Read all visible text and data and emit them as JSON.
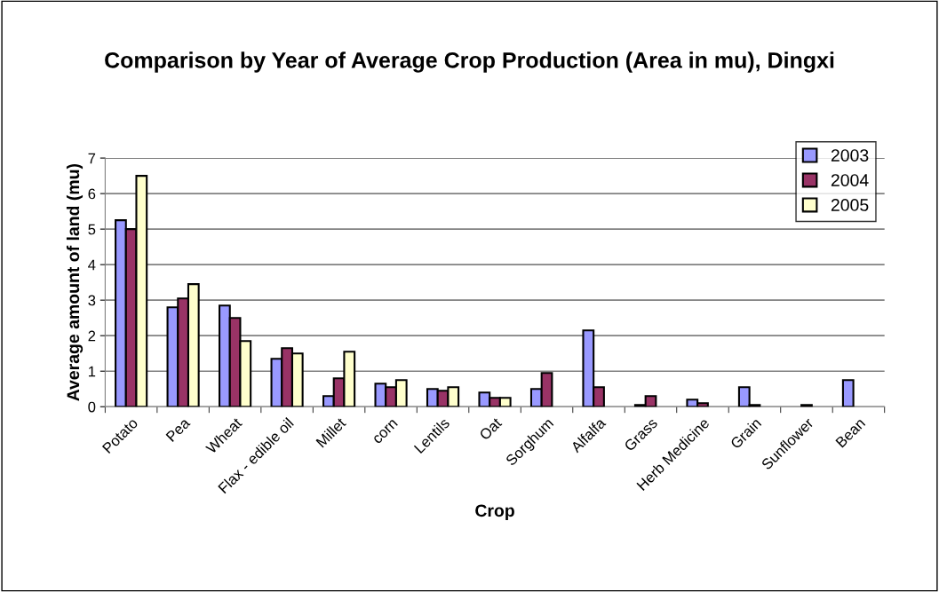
{
  "chart_data": {
    "type": "bar",
    "title": "Comparison by Year of Average Crop Production (Area in mu), Dingxi",
    "xlabel": "Crop",
    "ylabel": "Average amount of land (mu)",
    "categories": [
      "Potato",
      "Pea",
      "Wheat",
      "Flax - edible oil",
      "Millet",
      "corn",
      "Lentils",
      "Oat",
      "Sorghum",
      "Alfalfa",
      "Grass",
      "Herb Medicine",
      "Grain",
      "Sunflower",
      "Bean"
    ],
    "series": [
      {
        "name": "2003",
        "color": "#9999ff",
        "values": [
          5.25,
          2.8,
          2.85,
          1.35,
          0.3,
          0.65,
          0.5,
          0.4,
          0.5,
          2.15,
          0.05,
          0.2,
          0.55,
          null,
          0.75
        ]
      },
      {
        "name": "2004",
        "color": "#993366",
        "values": [
          5.0,
          3.05,
          2.5,
          1.65,
          0.8,
          0.55,
          0.45,
          0.25,
          0.95,
          0.55,
          0.3,
          0.1,
          0.05,
          0.05,
          null
        ]
      },
      {
        "name": "2005",
        "color": "#ffffcc",
        "values": [
          6.5,
          3.45,
          1.85,
          1.5,
          1.55,
          0.75,
          0.55,
          0.25,
          null,
          null,
          null,
          null,
          null,
          null,
          null
        ]
      }
    ],
    "ylim": [
      0,
      7
    ],
    "yticks": [
      0,
      1,
      2,
      3,
      4,
      5,
      6,
      7
    ],
    "grid": "y",
    "legend": "top right"
  }
}
